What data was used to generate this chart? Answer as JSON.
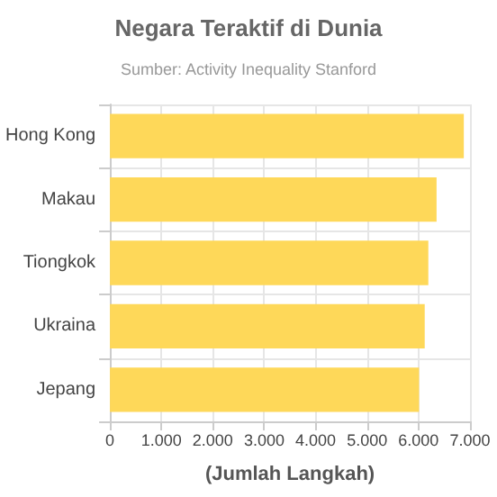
{
  "chart_data": {
    "type": "bar",
    "orientation": "horizontal",
    "title": "Negara Teraktif di Dunia",
    "subtitle": "Sumber: Activity Inequality Stanford",
    "xlabel": "(Jumlah Langkah)",
    "categories": [
      "Hong Kong",
      "Makau",
      "Tiongkok",
      "Ukraina",
      "Jepang"
    ],
    "values": [
      6880,
      6350,
      6190,
      6120,
      6010
    ],
    "color": "#fed859",
    "xlim": [
      0,
      7000
    ],
    "xticks": [
      0,
      {
        "value": 1000,
        "label": "1.000"
      },
      {
        "value": 2000,
        "label": "2.000"
      },
      {
        "value": 3000,
        "label": "3.000"
      },
      {
        "value": 4000,
        "label": "4.000"
      },
      {
        "value": 5000,
        "label": "5.000"
      },
      {
        "value": 6000,
        "label": "6.000"
      },
      {
        "value": 7000,
        "label": "7.000"
      }
    ],
    "grid": true
  }
}
